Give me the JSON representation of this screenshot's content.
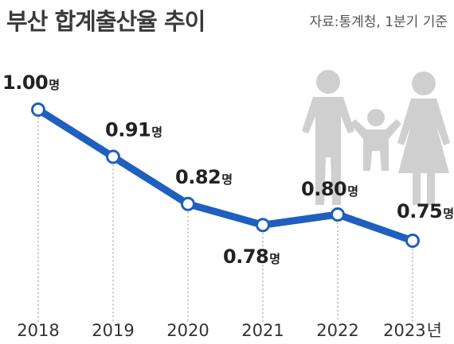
{
  "title": "부산 합계출산율 추이",
  "source": "자료:통계청, 1분기 기준",
  "unit_suffix": "명",
  "colors": {
    "line": "#1f5fbf",
    "marker_fill": "#ffffff",
    "guide": "#aaaaaa",
    "icon": "#cfcfcf",
    "title": "#3a3a3a"
  },
  "illustration": "family-icon",
  "chart_data": {
    "type": "line",
    "title": "부산 합계출산율 추이",
    "x": [
      "2018",
      "2019",
      "2020",
      "2021",
      "2022",
      "2023"
    ],
    "x_unit_suffix": "년",
    "series": [
      {
        "values": [
          1.0,
          0.91,
          0.82,
          0.78,
          0.8,
          0.75
        ],
        "labels": [
          "1.00",
          "0.91",
          "0.82",
          "0.78",
          "0.80",
          "0.75"
        ]
      }
    ],
    "ylim": [
      0.7,
      1.0
    ],
    "xlabel": "",
    "ylabel": "",
    "grid": false,
    "legend": "none",
    "y_axis_visible": false
  }
}
